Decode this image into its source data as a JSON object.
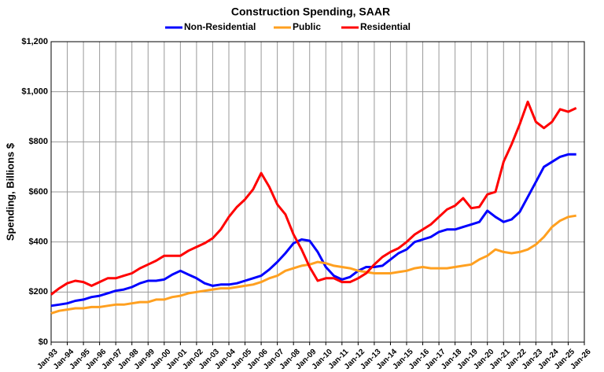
{
  "chart_data": {
    "type": "line",
    "title": "Construction Spending, SAAR",
    "y_label": "Spending, Billions $",
    "x": [
      "1993-01",
      "1993-07",
      "1994-01",
      "1994-07",
      "1995-01",
      "1995-07",
      "1996-01",
      "1996-07",
      "1997-01",
      "1997-07",
      "1998-01",
      "1998-07",
      "1999-01",
      "1999-07",
      "2000-01",
      "2000-07",
      "2001-01",
      "2001-07",
      "2002-01",
      "2002-07",
      "2003-01",
      "2003-07",
      "2004-01",
      "2004-07",
      "2005-01",
      "2005-07",
      "2006-01",
      "2006-07",
      "2007-01",
      "2007-07",
      "2008-01",
      "2008-07",
      "2009-01",
      "2009-07",
      "2010-01",
      "2010-07",
      "2011-01",
      "2011-07",
      "2012-01",
      "2012-07",
      "2013-01",
      "2013-07",
      "2014-01",
      "2014-07",
      "2015-01",
      "2015-07",
      "2016-01",
      "2016-07",
      "2017-01",
      "2017-07",
      "2018-01",
      "2018-07",
      "2019-01",
      "2019-07",
      "2020-01",
      "2020-07",
      "2021-01",
      "2021-07",
      "2022-01",
      "2022-07",
      "2023-01",
      "2023-07",
      "2024-01",
      "2024-07",
      "2025-01",
      "2025-07"
    ],
    "series": [
      {
        "name": "Non-Residential",
        "color": "#0000ff",
        "values": [
          145,
          150,
          155,
          165,
          170,
          180,
          185,
          195,
          205,
          210,
          220,
          235,
          245,
          245,
          250,
          270,
          285,
          270,
          255,
          235,
          225,
          230,
          230,
          235,
          245,
          255,
          265,
          290,
          320,
          355,
          395,
          410,
          405,
          360,
          300,
          265,
          250,
          260,
          285,
          300,
          300,
          305,
          330,
          355,
          370,
          400,
          410,
          420,
          440,
          450,
          450,
          460,
          470,
          480,
          525,
          500,
          480,
          490,
          520,
          580,
          640,
          700,
          720,
          740,
          750,
          750
        ]
      },
      {
        "name": "Public",
        "color": "#ffa020",
        "values": [
          115,
          125,
          130,
          135,
          135,
          140,
          140,
          145,
          150,
          150,
          155,
          160,
          160,
          170,
          170,
          180,
          185,
          195,
          200,
          205,
          210,
          215,
          215,
          220,
          225,
          230,
          240,
          255,
          265,
          285,
          295,
          305,
          310,
          320,
          315,
          305,
          300,
          295,
          285,
          280,
          275,
          275,
          275,
          280,
          285,
          295,
          300,
          295,
          295,
          295,
          300,
          305,
          310,
          330,
          345,
          370,
          360,
          355,
          360,
          370,
          390,
          420,
          460,
          485,
          500,
          505
        ]
      },
      {
        "name": "Residential",
        "color": "#ff0000",
        "values": [
          190,
          215,
          235,
          245,
          240,
          225,
          240,
          255,
          255,
          265,
          275,
          295,
          310,
          325,
          345,
          345,
          345,
          365,
          380,
          395,
          415,
          450,
          500,
          540,
          570,
          610,
          675,
          620,
          550,
          510,
          430,
          370,
          300,
          245,
          255,
          255,
          240,
          240,
          255,
          275,
          310,
          340,
          360,
          375,
          400,
          430,
          450,
          470,
          500,
          530,
          545,
          575,
          535,
          540,
          590,
          600,
          720,
          790,
          870,
          960,
          880,
          855,
          880,
          930,
          920,
          935
        ]
      }
    ],
    "xlim": [
      "1993-01",
      "2026-01"
    ],
    "xticks": [
      {
        "value": "1993-01",
        "label": "Jan-93"
      },
      {
        "value": "1994-01",
        "label": "Jan-94"
      },
      {
        "value": "1995-01",
        "label": "Jan-95"
      },
      {
        "value": "1996-01",
        "label": "Jan-96"
      },
      {
        "value": "1997-01",
        "label": "Jan-97"
      },
      {
        "value": "1998-01",
        "label": "Jan-98"
      },
      {
        "value": "1999-01",
        "label": "Jan-99"
      },
      {
        "value": "2000-01",
        "label": "Jan-00"
      },
      {
        "value": "2001-01",
        "label": "Jan-01"
      },
      {
        "value": "2002-01",
        "label": "Jan-02"
      },
      {
        "value": "2003-01",
        "label": "Jan-03"
      },
      {
        "value": "2004-01",
        "label": "Jan-04"
      },
      {
        "value": "2005-01",
        "label": "Jan-05"
      },
      {
        "value": "2006-01",
        "label": "Jan-06"
      },
      {
        "value": "2007-01",
        "label": "Jan-07"
      },
      {
        "value": "2008-01",
        "label": "Jan-08"
      },
      {
        "value": "2009-01",
        "label": "Jan-09"
      },
      {
        "value": "2010-01",
        "label": "Jan-10"
      },
      {
        "value": "2011-01",
        "label": "Jan-11"
      },
      {
        "value": "2012-01",
        "label": "Jan-12"
      },
      {
        "value": "2013-01",
        "label": "Jan-13"
      },
      {
        "value": "2014-01",
        "label": "Jan-14"
      },
      {
        "value": "2015-01",
        "label": "Jan-15"
      },
      {
        "value": "2016-01",
        "label": "Jan-16"
      },
      {
        "value": "2017-01",
        "label": "Jan-17"
      },
      {
        "value": "2018-01",
        "label": "Jan-18"
      },
      {
        "value": "2019-01",
        "label": "Jan-19"
      },
      {
        "value": "2020-01",
        "label": "Jan-20"
      },
      {
        "value": "2021-01",
        "label": "Jan-21"
      },
      {
        "value": "2022-01",
        "label": "Jan-22"
      },
      {
        "value": "2023-01",
        "label": "Jan-23"
      },
      {
        "value": "2024-01",
        "label": "Jan-24"
      },
      {
        "value": "2025-01",
        "label": "Jan-25"
      },
      {
        "value": "2026-01",
        "label": "Jan-26"
      }
    ],
    "ylim": [
      0,
      1200
    ],
    "yticks": [
      {
        "value": 0,
        "label": "$0"
      },
      {
        "value": 200,
        "label": "$200"
      },
      {
        "value": 400,
        "label": "$400"
      },
      {
        "value": 600,
        "label": "$600"
      },
      {
        "value": 800,
        "label": "$800"
      },
      {
        "value": 1000,
        "label": "$1,000"
      },
      {
        "value": 1200,
        "label": "$1,200"
      }
    ],
    "grid": true
  }
}
